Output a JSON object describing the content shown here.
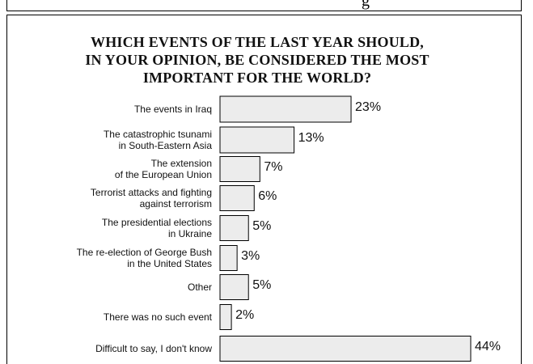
{
  "page": {
    "top_strip_text": "g"
  },
  "chart_data": {
    "type": "bar",
    "orientation": "horizontal",
    "title": "WHICH EVENTS OF THE LAST YEAR SHOULD, IN YOUR OPINION, BE CONSIDERED THE MOST IMPORTANT FOR THE WORLD?",
    "title_lines": [
      "WHICH EVENTS OF THE LAST YEAR SHOULD,",
      "IN YOUR OPINION, BE CONSIDERED THE MOST",
      "IMPORTANT FOR THE WORLD?"
    ],
    "categories": [
      [
        "The events in Iraq"
      ],
      [
        "The catastrophic tsunami",
        "in South-Eastern Asia"
      ],
      [
        "The extension",
        "of the European Union"
      ],
      [
        "Terrorist attacks and fighting",
        "against terrorism"
      ],
      [
        "The presidential elections",
        "in Ukraine"
      ],
      [
        "The re-election of George Bush",
        "in the United States"
      ],
      [
        "Other"
      ],
      [
        "There was no such event"
      ],
      [
        "Difficult to say, I don't know"
      ]
    ],
    "values": [
      23,
      13,
      7,
      6,
      5,
      3,
      5,
      2,
      44
    ],
    "value_labels": [
      "23%",
      "13%",
      "7%",
      "6%",
      "5%",
      "3%",
      "5%",
      "2%",
      "44%"
    ],
    "unit": "%",
    "xlim": [
      0,
      44
    ],
    "grid": false,
    "legend": "none",
    "colors": {
      "bar_fill": "#ececec",
      "bar_stroke": "#000000",
      "text": "#111111"
    }
  }
}
